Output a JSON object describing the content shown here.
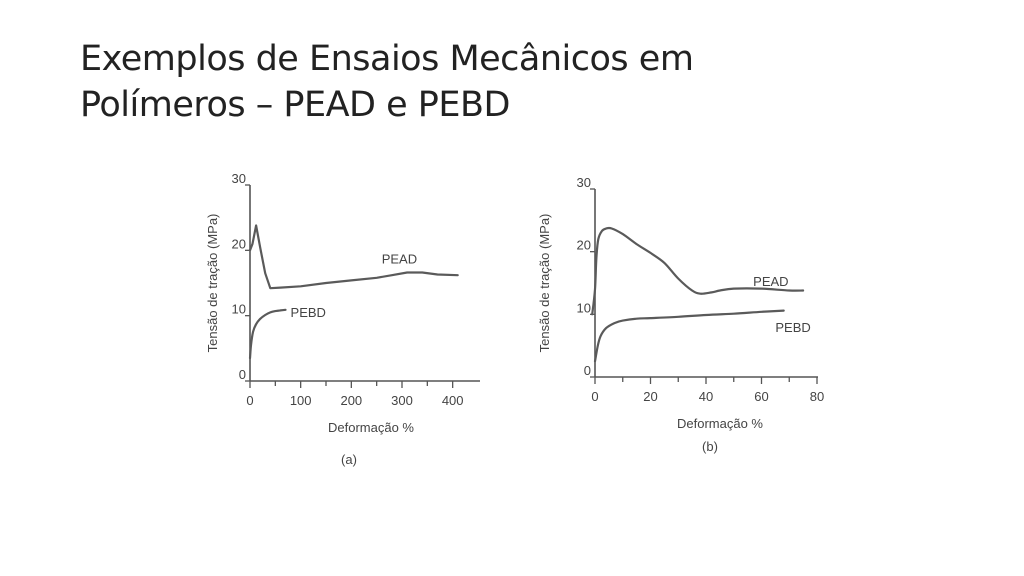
{
  "slide": {
    "title_line1": "Exemplos de Ensaios Mecânicos em",
    "title_line2": "Polímeros – PEAD e PEBD"
  },
  "chart_data": [
    {
      "type": "line",
      "caption": "(a)",
      "xlabel": "Deformação %",
      "ylabel": "Tensão de tração (MPa)",
      "xlim": [
        0,
        450
      ],
      "ylim": [
        0,
        30
      ],
      "x_ticks": [
        0,
        100,
        200,
        300,
        400
      ],
      "y_ticks": [
        0,
        10,
        20,
        30
      ],
      "x_tick_labels": [
        "0",
        "100",
        "200",
        "300",
        "400"
      ],
      "y_tick_labels": [
        "0",
        "10",
        "20",
        "30"
      ],
      "grid": false,
      "series": [
        {
          "name": "PEAD",
          "color": "#5a5a5a",
          "points": [
            [
              0,
              20
            ],
            [
              5,
              21
            ],
            [
              12,
              23.8
            ],
            [
              20,
              20.5
            ],
            [
              30,
              16.5
            ],
            [
              40,
              14.2
            ],
            [
              60,
              14.3
            ],
            [
              100,
              14.5
            ],
            [
              150,
              15
            ],
            [
              200,
              15.4
            ],
            [
              250,
              15.8
            ],
            [
              280,
              16.2
            ],
            [
              310,
              16.6
            ],
            [
              340,
              16.6
            ],
            [
              370,
              16.3
            ],
            [
              410,
              16.2
            ]
          ]
        },
        {
          "name": "PEBD",
          "color": "#5a5a5a",
          "points": [
            [
              0,
              3.5
            ],
            [
              2,
              5.5
            ],
            [
              6,
              7.5
            ],
            [
              12,
              8.7
            ],
            [
              20,
              9.5
            ],
            [
              30,
              10.1
            ],
            [
              40,
              10.5
            ],
            [
              50,
              10.7
            ],
            [
              60,
              10.8
            ],
            [
              70,
              10.9
            ]
          ]
        }
      ]
    },
    {
      "type": "line",
      "caption": "(b)",
      "xlabel": "Deformação %",
      "ylabel": "Tensão de tração (MPa)",
      "xlim": [
        0,
        80
      ],
      "ylim": [
        0,
        30
      ],
      "x_ticks": [
        0,
        20,
        40,
        60,
        80
      ],
      "y_ticks": [
        0,
        10,
        20,
        30
      ],
      "x_tick_labels": [
        "0",
        "20",
        "40",
        "60",
        "80"
      ],
      "y_tick_labels": [
        "0",
        "10",
        "20",
        "30"
      ],
      "grid": false,
      "series": [
        {
          "name": "PEAD",
          "color": "#5a5a5a",
          "points": [
            [
              -1,
              10
            ],
            [
              0,
              14
            ],
            [
              0.5,
              19
            ],
            [
              1.2,
              22
            ],
            [
              2.5,
              23.3
            ],
            [
              4,
              23.7
            ],
            [
              6,
              23.7
            ],
            [
              10,
              22.8
            ],
            [
              15,
              21.2
            ],
            [
              20,
              19.8
            ],
            [
              25,
              18.2
            ],
            [
              30,
              15.7
            ],
            [
              35,
              13.8
            ],
            [
              38,
              13.3
            ],
            [
              42,
              13.5
            ],
            [
              45,
              13.8
            ],
            [
              50,
              14.1
            ],
            [
              60,
              14.1
            ],
            [
              70,
              13.8
            ],
            [
              75,
              13.8
            ]
          ]
        },
        {
          "name": "PEBD",
          "color": "#5a5a5a",
          "points": [
            [
              0,
              2.5
            ],
            [
              1,
              5
            ],
            [
              2,
              6.5
            ],
            [
              4,
              7.8
            ],
            [
              7,
              8.6
            ],
            [
              10,
              9.0
            ],
            [
              15,
              9.3
            ],
            [
              20,
              9.4
            ],
            [
              30,
              9.6
            ],
            [
              40,
              9.9
            ],
            [
              50,
              10.1
            ],
            [
              60,
              10.4
            ],
            [
              68,
              10.6
            ]
          ]
        }
      ]
    }
  ]
}
